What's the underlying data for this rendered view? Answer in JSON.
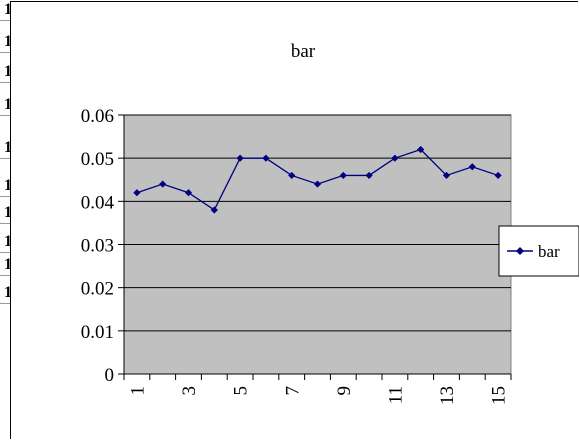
{
  "sheet": {
    "row_marks": [
      "1",
      "1",
      "1",
      "1",
      "1",
      "1",
      "1",
      "1",
      "1",
      "1"
    ]
  },
  "chart_data": {
    "type": "line",
    "title": "bar",
    "xlabel": "",
    "ylabel": "",
    "categories": [
      "1",
      "2",
      "3",
      "4",
      "5",
      "6",
      "7",
      "8",
      "9",
      "10",
      "11",
      "12",
      "13",
      "14",
      "15"
    ],
    "x_tick_labels": [
      "1",
      "",
      "3",
      "",
      "5",
      "",
      "7",
      "",
      "9",
      "",
      "11",
      "",
      "13",
      "",
      "15"
    ],
    "y_ticks": [
      "0",
      "0.01",
      "0.02",
      "0.03",
      "0.04",
      "0.05",
      "0.06"
    ],
    "ylim": [
      0,
      0.06
    ],
    "grid": true,
    "legend_position": "right",
    "plot_background": "#c0c0c0",
    "series": [
      {
        "name": "bar",
        "color": "#000080",
        "values": [
          0.042,
          0.044,
          0.042,
          0.038,
          0.05,
          0.05,
          0.046,
          0.044,
          0.046,
          0.046,
          0.05,
          0.052,
          0.046,
          0.048,
          0.046
        ]
      }
    ]
  }
}
